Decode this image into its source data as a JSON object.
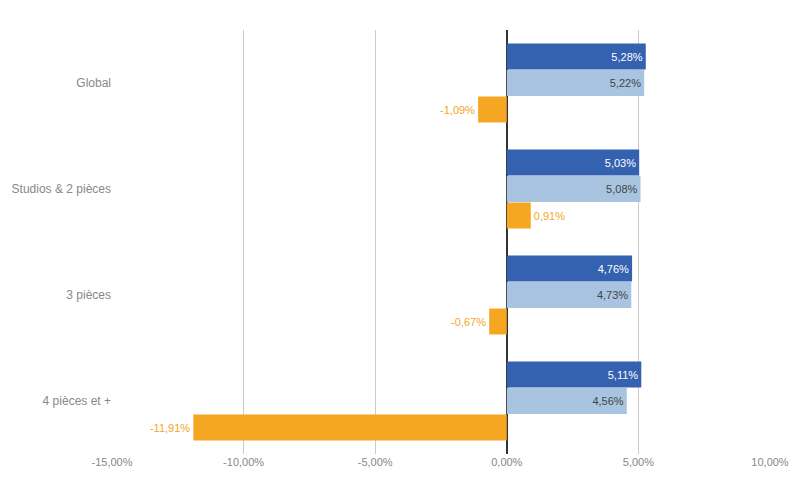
{
  "chart_data": {
    "type": "bar",
    "orientation": "horizontal",
    "categories": [
      "Global",
      "Studios & 2 pièces",
      "3 pièces",
      "4 pièces et +"
    ],
    "series": [
      {
        "color": "#3461B0",
        "values": [
          5.28,
          5.03,
          4.76,
          5.11
        ],
        "value_labels": [
          "5,28%",
          "5,03%",
          "4,76%",
          "5,11%"
        ]
      },
      {
        "color": "#A8C4E0",
        "values": [
          5.22,
          5.08,
          4.73,
          4.56
        ],
        "value_labels": [
          "5,22%",
          "5,08%",
          "4,73%",
          "4,56%"
        ]
      },
      {
        "color": "#F5A623",
        "values": [
          -1.09,
          0.91,
          -0.67,
          -11.91
        ],
        "value_labels": [
          "-1,09%",
          "0,91%",
          "-0,67%",
          "-11,91%"
        ]
      }
    ],
    "xlim": [
      -15,
      10
    ],
    "xticks": [
      {
        "value": -15,
        "label": "-15,00%"
      },
      {
        "value": -10,
        "label": "-10,00%"
      },
      {
        "value": -5,
        "label": "-5,00%"
      },
      {
        "value": 0,
        "label": "0,00%"
      },
      {
        "value": 5,
        "label": "5,00%"
      },
      {
        "value": 10,
        "label": "10,00%"
      }
    ],
    "grid": true,
    "data_labels": true
  }
}
